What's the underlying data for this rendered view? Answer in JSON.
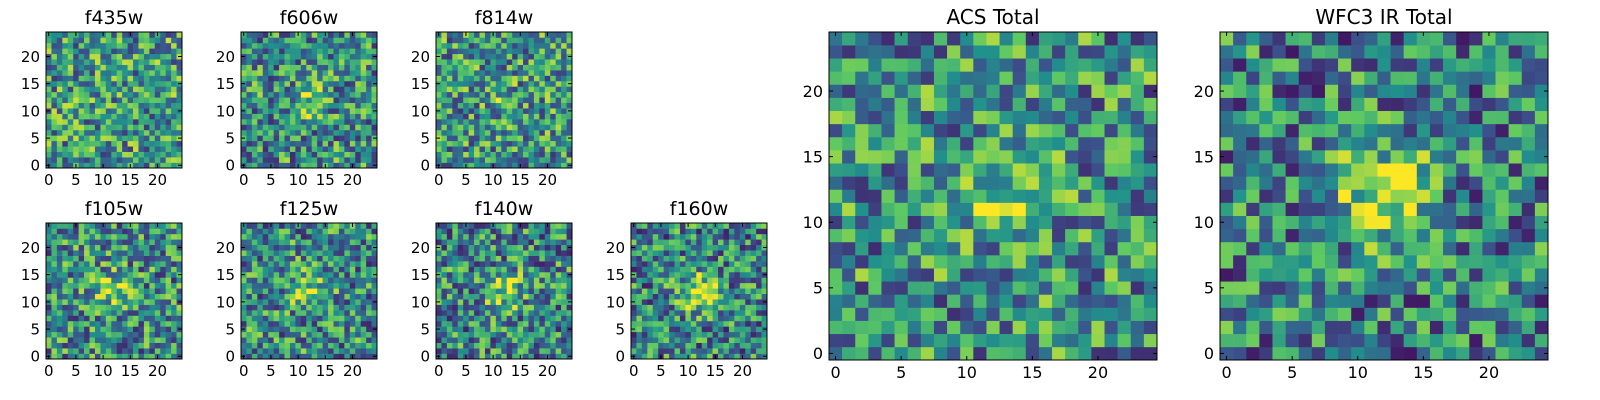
{
  "chart_data": [
    {
      "type": "heatmap",
      "title": "f435w",
      "xlim": [
        -0.5,
        24.5
      ],
      "ylim": [
        -0.5,
        24.5
      ],
      "xticks": [
        0,
        5,
        10,
        15,
        20
      ],
      "yticks": [
        0,
        5,
        10,
        15,
        20
      ],
      "source_peak": 0.0,
      "seed": 11
    },
    {
      "type": "heatmap",
      "title": "f606w",
      "xlim": [
        -0.5,
        24.5
      ],
      "ylim": [
        -0.5,
        24.5
      ],
      "xticks": [
        0,
        5,
        10,
        15,
        20
      ],
      "yticks": [
        0,
        5,
        10,
        15,
        20
      ],
      "source_peak": 0.35,
      "seed": 23
    },
    {
      "type": "heatmap",
      "title": "f814w",
      "xlim": [
        -0.5,
        24.5
      ],
      "ylim": [
        -0.5,
        24.5
      ],
      "xticks": [
        0,
        5,
        10,
        15,
        20
      ],
      "yticks": [
        0,
        5,
        10,
        15,
        20
      ],
      "source_peak": 0.15,
      "seed": 37
    },
    {
      "type": "heatmap",
      "title": "f105w",
      "xlim": [
        -0.5,
        24.5
      ],
      "ylim": [
        -0.5,
        24.5
      ],
      "xticks": [
        0,
        5,
        10,
        15,
        20
      ],
      "yticks": [
        0,
        5,
        10,
        15,
        20
      ],
      "source_peak": 0.45,
      "seed": 41
    },
    {
      "type": "heatmap",
      "title": "f125w",
      "xlim": [
        -0.5,
        24.5
      ],
      "ylim": [
        -0.5,
        24.5
      ],
      "xticks": [
        0,
        5,
        10,
        15,
        20
      ],
      "yticks": [
        0,
        5,
        10,
        15,
        20
      ],
      "source_peak": 0.5,
      "seed": 53
    },
    {
      "type": "heatmap",
      "title": "f140w",
      "xlim": [
        -0.5,
        24.5
      ],
      "ylim": [
        -0.5,
        24.5
      ],
      "xticks": [
        0,
        5,
        10,
        15,
        20
      ],
      "yticks": [
        0,
        5,
        10,
        15,
        20
      ],
      "source_peak": 0.6,
      "seed": 67
    },
    {
      "type": "heatmap",
      "title": "f160w",
      "xlim": [
        -0.5,
        24.5
      ],
      "ylim": [
        -0.5,
        24.5
      ],
      "xticks": [
        0,
        5,
        10,
        15,
        20
      ],
      "yticks": [
        0,
        5,
        10,
        15,
        20
      ],
      "source_peak": 0.7,
      "seed": 71
    },
    {
      "type": "heatmap",
      "title": "ACS Total",
      "xlim": [
        -0.5,
        24.5
      ],
      "ylim": [
        -0.5,
        24.5
      ],
      "xticks": [
        0,
        5,
        10,
        15,
        20
      ],
      "yticks": [
        0,
        5,
        10,
        15,
        20
      ],
      "source_peak": 0.35,
      "seed": 83
    },
    {
      "type": "heatmap",
      "title": "WFC3 IR Total",
      "xlim": [
        -0.5,
        24.5
      ],
      "ylim": [
        -0.5,
        24.5
      ],
      "xticks": [
        0,
        5,
        10,
        15,
        20
      ],
      "yticks": [
        0,
        5,
        10,
        15,
        20
      ],
      "source_peak": 0.9,
      "seed": 97
    }
  ],
  "colormap": [
    "#440154",
    "#3b528b",
    "#21918c",
    "#5ec962",
    "#fde725"
  ],
  "grid_size": 25,
  "source_center": [
    12,
    12
  ]
}
